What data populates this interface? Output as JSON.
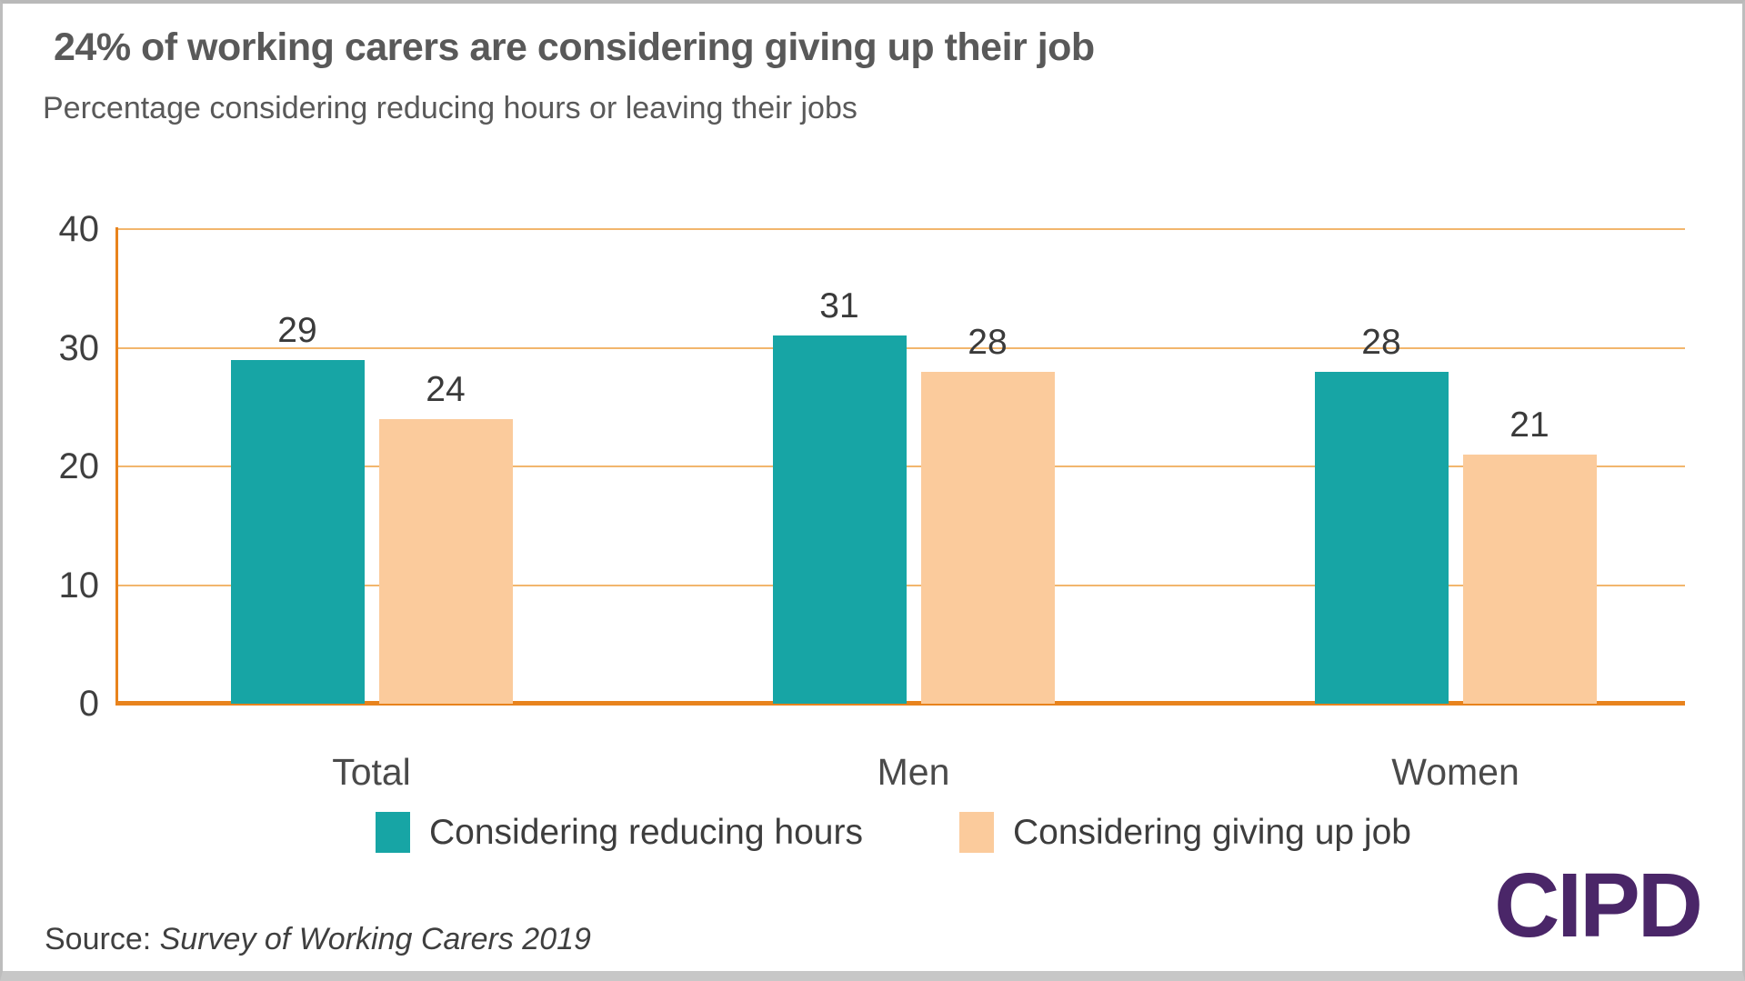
{
  "header": {
    "title": "24% of working carers are considering giving up their job",
    "subtitle": "Percentage considering reducing hours or leaving their jobs"
  },
  "chart_data": {
    "type": "bar",
    "title": "24% of working carers are considering giving up their job",
    "subtitle": "Percentage considering reducing hours or leaving their jobs",
    "categories": [
      "Total",
      "Men",
      "Women"
    ],
    "series": [
      {
        "name": "Considering reducing hours",
        "color": "#17a5a5",
        "values": [
          29,
          31,
          28
        ]
      },
      {
        "name": "Considering giving up job",
        "color": "#fbcb9c",
        "values": [
          24,
          28,
          21
        ]
      }
    ],
    "ylim": [
      0,
      40
    ],
    "yticks": [
      0,
      10,
      20,
      30,
      40
    ],
    "grid": true,
    "grid_color": "#f2b66d",
    "axis_color": "#e8831d",
    "legend_position": "bottom",
    "value_labels": true
  },
  "footer": {
    "source_prefix": "Source: ",
    "source_name": "Survey of Working Carers 2019",
    "logo_text": "CIPD",
    "logo_color": "#4a2668"
  }
}
